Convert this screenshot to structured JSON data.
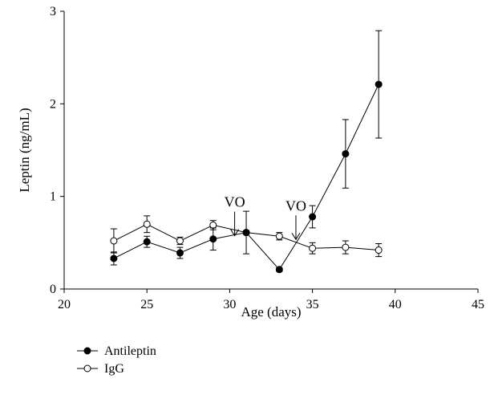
{
  "chart_data": {
    "type": "line",
    "xlabel": "Age (days)",
    "ylabel": "Leptin (ng/mL)",
    "xlim": [
      20,
      45
    ],
    "ylim": [
      0,
      3
    ],
    "xticks": [
      20,
      25,
      30,
      35,
      40,
      45
    ],
    "yticks": [
      0,
      1,
      2,
      3
    ],
    "grid": false,
    "legend_position": "bottom-left",
    "series": [
      {
        "name": "Antileptin",
        "marker": "filled-circle",
        "x": [
          23,
          25,
          27,
          29,
          31,
          33,
          35,
          37,
          39
        ],
        "y": [
          0.33,
          0.51,
          0.39,
          0.54,
          0.61,
          0.21,
          0.78,
          1.46,
          2.21
        ],
        "err": [
          0.07,
          0.06,
          0.06,
          0.12,
          0.23,
          0.02,
          0.12,
          0.37,
          0.58
        ]
      },
      {
        "name": "IgG",
        "marker": "open-circle",
        "x": [
          23,
          25,
          27,
          29,
          31,
          33,
          35,
          37,
          39
        ],
        "y": [
          0.52,
          0.7,
          0.52,
          0.69,
          0.61,
          0.57,
          0.44,
          0.45,
          0.42
        ],
        "err": [
          0.13,
          0.09,
          0.04,
          0.05,
          0.02,
          0.04,
          0.06,
          0.07,
          0.07
        ]
      }
    ],
    "annotations": [
      {
        "text": "VO",
        "x": 30.3,
        "y": 0.61
      },
      {
        "text": "VO",
        "x": 34.0,
        "y": 0.57
      }
    ]
  }
}
